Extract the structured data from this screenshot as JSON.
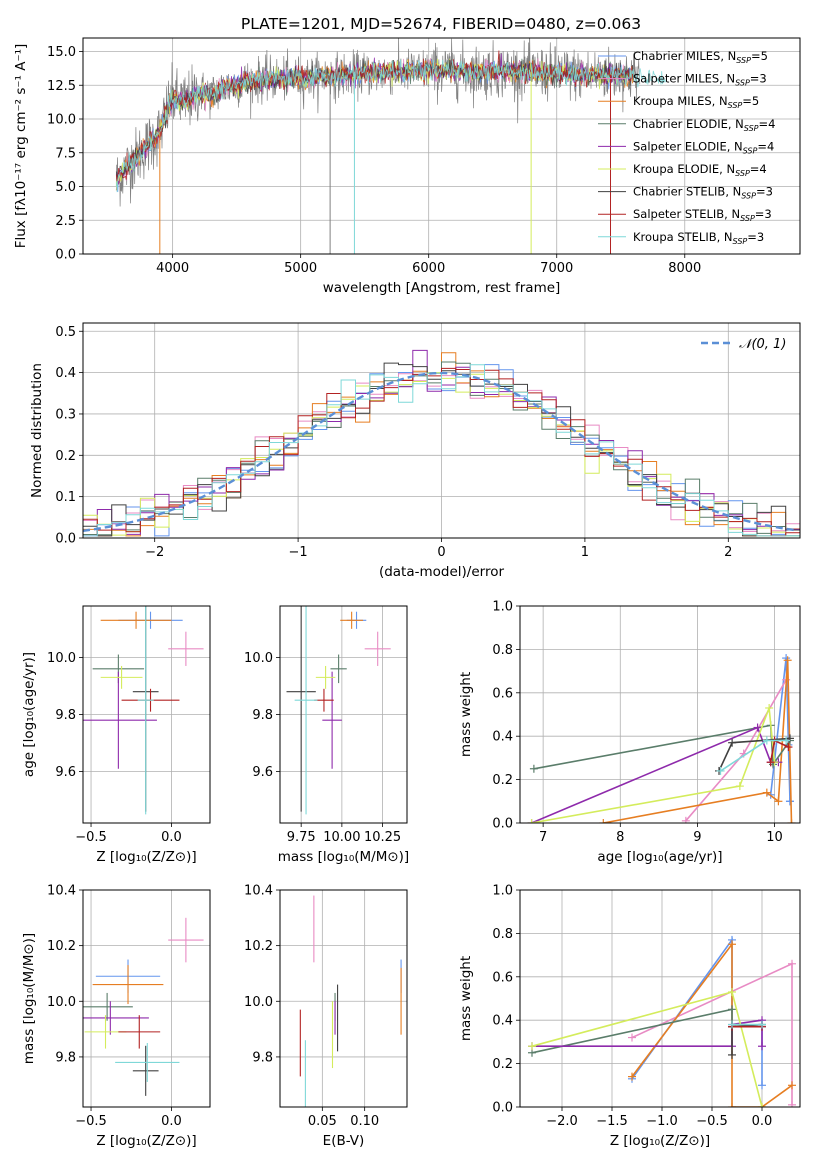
{
  "figure": {
    "title": "PLATE=1201, MJD=52674, FIBERID=0480, z=0.063"
  },
  "chart_data": [
    {
      "id": "spectrum",
      "type": "line",
      "xlabel": "wavelength [Angstrom, rest frame]",
      "ylabel": "Flux [fλ10⁻¹⁷ erg cm⁻² s⁻¹ A⁻¹]",
      "xlim": [
        3300,
        8900
      ],
      "ylim": [
        0,
        16
      ],
      "xticks": [
        4000,
        5000,
        6000,
        7000,
        8000
      ],
      "yticks": [
        0.0,
        2.5,
        5.0,
        7.5,
        10.0,
        12.5,
        15.0
      ],
      "ytick_labels": [
        "0.0",
        "2.5",
        "5.0",
        "7.5",
        "10.0",
        "12.5",
        "15.0"
      ],
      "data_x_range": [
        3560,
        7850
      ],
      "smooth_x": [
        3560,
        3700,
        3800,
        3900,
        3950,
        4000,
        4100,
        4200,
        4300,
        4400,
        4600,
        4800,
        5000,
        5200,
        5400,
        5600,
        5800,
        6000,
        6200,
        6400,
        6600,
        6800,
        7000,
        7200,
        7400,
        7600,
        7850
      ],
      "smooth_y": [
        5.5,
        7.0,
        8.0,
        9.0,
        10.5,
        11.5,
        11.2,
        12.0,
        11.8,
        12.3,
        12.8,
        13.0,
        13.0,
        13.2,
        13.3,
        13.4,
        13.5,
        13.6,
        13.6,
        13.5,
        13.6,
        13.5,
        13.4,
        13.3,
        13.3,
        13.2,
        13.0
      ],
      "legend_loc": "right",
      "legend": [
        {
          "label": "Chabrier MILES, N",
          "sub": "SSP",
          "suffix": "=5",
          "color": "#6495ed"
        },
        {
          "label": "Salpeter MILES, N",
          "sub": "SSP",
          "suffix": "=3",
          "color": "#e88bc4"
        },
        {
          "label": "Kroupa MILES, N",
          "sub": "SSP",
          "suffix": "=5",
          "color": "#e67e22"
        },
        {
          "label": "Chabrier ELODIE, N",
          "sub": "SSP",
          "suffix": "=4",
          "color": "#5a7d6a"
        },
        {
          "label": "Salpeter ELODIE, N",
          "sub": "SSP",
          "suffix": "=4",
          "color": "#8e2aab"
        },
        {
          "label": "Kroupa ELODIE, N",
          "sub": "SSP",
          "suffix": "=4",
          "color": "#d4ec5c"
        },
        {
          "label": "Chabrier STELIB, N",
          "sub": "SSP",
          "suffix": "=3",
          "color": "#404040"
        },
        {
          "label": "Salpeter STELIB, N",
          "sub": "SSP",
          "suffix": "=3",
          "color": "#b22222"
        },
        {
          "label": "Kroupa STELIB, N",
          "sub": "SSP",
          "suffix": "=3",
          "color": "#7fd8d8"
        }
      ],
      "data_color": "#808080",
      "dips": [
        {
          "x": 3900,
          "color": "#e67e22"
        },
        {
          "x": 5230,
          "color": "#808080"
        },
        {
          "x": 5420,
          "color": "#7fd8d8"
        },
        {
          "x": 6800,
          "color": "#d4ec5c"
        },
        {
          "x": 7420,
          "color": "#b22222"
        }
      ]
    },
    {
      "id": "residuals",
      "type": "histogram",
      "xlabel": "(data-model)/error",
      "ylabel": "Normed distribution",
      "xlim": [
        -2.5,
        2.5
      ],
      "ylim": [
        0,
        0.52
      ],
      "xticks": [
        -2,
        -1,
        0,
        1,
        2
      ],
      "xtick_labels": [
        "−2",
        "−1",
        "0",
        "1",
        "2"
      ],
      "yticks": [
        0.0,
        0.1,
        0.2,
        0.3,
        0.4,
        0.5
      ],
      "ytick_labels": [
        "0.0",
        "0.1",
        "0.2",
        "0.3",
        "0.4",
        "0.5"
      ],
      "grid": true,
      "legend_label": "𝒩(0, 1)",
      "legend_color": "#5b8fd6",
      "bin_width": 0.1,
      "colors": [
        "#6495ed",
        "#e88bc4",
        "#e67e22",
        "#5a7d6a",
        "#8e2aab",
        "#d4ec5c",
        "#404040",
        "#b22222",
        "#7fd8d8"
      ]
    },
    {
      "id": "age-vs-Z",
      "type": "scatter",
      "xlabel": "Z [log₁₀(Z/Z⊙)]",
      "ylabel": "age  [log₁₀(age/yr)]",
      "xlim": [
        -0.55,
        0.24
      ],
      "ylim": [
        9.42,
        10.18
      ],
      "xticks": [
        -0.5,
        0.0
      ],
      "xtick_labels": [
        "−0.5",
        "0.0"
      ],
      "yticks": [
        9.6,
        9.8,
        10.0
      ],
      "ytick_labels": [
        "9.6",
        "9.8",
        "10.0"
      ],
      "points": [
        {
          "color": "#6495ed",
          "x": -0.13,
          "xe": 0.2,
          "y": 10.13,
          "ye": 0.03
        },
        {
          "color": "#e88bc4",
          "x": 0.09,
          "xe": 0.11,
          "y": 10.03,
          "ye": 0.06
        },
        {
          "color": "#e67e22",
          "x": -0.22,
          "xe": 0.22,
          "y": 10.13,
          "ye": 0.03
        },
        {
          "color": "#5a7d6a",
          "x": -0.33,
          "xe": 0.16,
          "y": 9.96,
          "ye": 0.05
        },
        {
          "color": "#8e2aab",
          "x": -0.33,
          "xe": 0.24,
          "y": 9.78,
          "ye": 0.17
        },
        {
          "color": "#d4ec5c",
          "x": -0.31,
          "xe": 0.13,
          "y": 9.93,
          "ye": 0.04
        },
        {
          "color": "#404040",
          "x": -0.16,
          "xe": 0.08,
          "y": 9.88,
          "ye": 0.42
        },
        {
          "color": "#b22222",
          "x": -0.13,
          "xe": 0.18,
          "y": 9.85,
          "ye": 0.04
        },
        {
          "color": "#7fd8d8",
          "x": -0.16,
          "xe": 0.05,
          "y": 9.85,
          "ye": 0.4
        }
      ]
    },
    {
      "id": "age-vs-mass",
      "type": "scatter",
      "xlabel": "mass [log₁₀(M/M⊙)]",
      "ylabel": "",
      "xlim": [
        9.62,
        10.4
      ],
      "ylim": [
        9.42,
        10.18
      ],
      "xticks": [
        9.75,
        10.0,
        10.25
      ],
      "xtick_labels": [
        "9.75",
        "10.00",
        "10.25"
      ],
      "yticks": [
        9.6,
        9.8,
        10.0
      ],
      "ytick_labels": [
        "9.6",
        "9.8",
        "10.0"
      ],
      "points": [
        {
          "color": "#6495ed",
          "x": 10.09,
          "xe": 0.06,
          "y": 10.13,
          "ye": 0.03
        },
        {
          "color": "#e88bc4",
          "x": 10.22,
          "xe": 0.08,
          "y": 10.03,
          "ye": 0.06
        },
        {
          "color": "#e67e22",
          "x": 10.06,
          "xe": 0.07,
          "y": 10.13,
          "ye": 0.03
        },
        {
          "color": "#5a7d6a",
          "x": 9.98,
          "xe": 0.05,
          "y": 9.96,
          "ye": 0.05
        },
        {
          "color": "#8e2aab",
          "x": 9.94,
          "xe": 0.06,
          "y": 9.78,
          "ye": 0.17
        },
        {
          "color": "#d4ec5c",
          "x": 9.9,
          "xe": 0.06,
          "y": 9.93,
          "ye": 0.04
        },
        {
          "color": "#404040",
          "x": 9.75,
          "xe": 0.09,
          "y": 9.88,
          "ye": 0.42
        },
        {
          "color": "#b22222",
          "x": 9.89,
          "xe": 0.06,
          "y": 9.85,
          "ye": 0.04
        },
        {
          "color": "#7fd8d8",
          "x": 9.78,
          "xe": 0.07,
          "y": 9.85,
          "ye": 0.4
        }
      ]
    },
    {
      "id": "massweight-vs-age",
      "type": "line",
      "xlabel": "age  [log₁₀(age/yr)]",
      "ylabel": "mass weight",
      "xlim": [
        6.7,
        10.33
      ],
      "ylim": [
        0,
        1
      ],
      "xticks": [
        7,
        8,
        9,
        10
      ],
      "xtick_labels": [
        "7",
        "8",
        "9",
        "10"
      ],
      "yticks": [
        0.0,
        0.2,
        0.4,
        0.6,
        0.8,
        1.0
      ],
      "ytick_labels": [
        "0.0",
        "0.2",
        "0.4",
        "0.6",
        "0.8",
        "1.0"
      ],
      "grid": true,
      "series": [
        {
          "color": "#6495ed",
          "x": [
            9.95,
            10.15,
            10.2,
            10.18,
            10.2
          ],
          "y": [
            0.13,
            0.76,
            0.1,
            0.36,
            0.1
          ]
        },
        {
          "color": "#e88bc4",
          "x": [
            8.85,
            9.6,
            10.15
          ],
          "y": [
            0.01,
            0.32,
            0.66
          ]
        },
        {
          "color": "#e67e22",
          "x": [
            7.78,
            9.9,
            10.05,
            10.17,
            10.22
          ],
          "y": [
            0.0,
            0.14,
            0.1,
            0.75,
            0.0
          ]
        },
        {
          "color": "#5a7d6a",
          "x": [
            6.88,
            9.95,
            9.98,
            10.2
          ],
          "y": [
            0.25,
            0.45,
            0.27,
            0.38
          ]
        },
        {
          "color": "#8e2aab",
          "x": [
            6.85,
            9.78,
            9.95,
            10.05
          ],
          "y": [
            0.0,
            0.44,
            0.28,
            0.28
          ]
        },
        {
          "color": "#d4ec5c",
          "x": [
            6.85,
            9.55,
            9.93,
            10.0
          ],
          "y": [
            0.0,
            0.17,
            0.53,
            0.28
          ]
        },
        {
          "color": "#404040",
          "x": [
            9.28,
            9.45,
            10.2
          ],
          "y": [
            0.24,
            0.37,
            0.39
          ]
        },
        {
          "color": "#b22222",
          "x": [
            9.95,
            10.0,
            10.18
          ],
          "y": [
            0.28,
            0.38,
            0.35
          ]
        },
        {
          "color": "#7fd8d8",
          "x": [
            9.3,
            9.9,
            10.15
          ],
          "y": [
            0.24,
            0.38,
            0.38
          ]
        }
      ]
    },
    {
      "id": "mass-vs-Z",
      "type": "scatter",
      "xlabel": "Z [log₁₀(Z/Z⊙)]",
      "ylabel": "mass [log₁₀(M/M⊙)]",
      "xlim": [
        -0.55,
        0.24
      ],
      "ylim": [
        9.62,
        10.4
      ],
      "xticks": [
        -0.5,
        0.0
      ],
      "xtick_labels": [
        "−0.5",
        "0.0"
      ],
      "yticks": [
        9.8,
        10.0,
        10.2,
        10.4
      ],
      "ytick_labels": [
        "9.8",
        "10.0",
        "10.2",
        "10.4"
      ],
      "points": [
        {
          "color": "#6495ed",
          "x": -0.27,
          "xe": 0.2,
          "y": 10.09,
          "ye": 0.06
        },
        {
          "color": "#e88bc4",
          "x": 0.09,
          "xe": 0.11,
          "y": 10.22,
          "ye": 0.08
        },
        {
          "color": "#e67e22",
          "x": -0.27,
          "xe": 0.22,
          "y": 10.06,
          "ye": 0.07
        },
        {
          "color": "#5a7d6a",
          "x": -0.4,
          "xe": 0.16,
          "y": 9.98,
          "ye": 0.05
        },
        {
          "color": "#8e2aab",
          "x": -0.38,
          "xe": 0.24,
          "y": 9.94,
          "ye": 0.06
        },
        {
          "color": "#d4ec5c",
          "x": -0.41,
          "xe": 0.13,
          "y": 9.89,
          "ye": 0.06
        },
        {
          "color": "#404040",
          "x": -0.16,
          "xe": 0.08,
          "y": 9.75,
          "ye": 0.09
        },
        {
          "color": "#b22222",
          "x": -0.2,
          "xe": 0.13,
          "y": 9.89,
          "ye": 0.06
        },
        {
          "color": "#7fd8d8",
          "x": -0.15,
          "xe": 0.2,
          "y": 9.78,
          "ye": 0.07
        }
      ]
    },
    {
      "id": "mass-vs-ebv",
      "type": "scatter",
      "xlabel": "E(B-V)",
      "ylabel": "",
      "xlim": [
        0.0,
        0.15
      ],
      "ylim": [
        9.62,
        10.4
      ],
      "xticks": [
        0.05,
        0.1
      ],
      "xtick_labels": [
        "0.05",
        "0.10"
      ],
      "yticks": [
        9.8,
        10.0,
        10.2,
        10.4
      ],
      "ytick_labels": [
        "9.8",
        "10.0",
        "10.2",
        "10.4"
      ],
      "points": [
        {
          "color": "#6495ed",
          "x": 0.143,
          "xe": 0,
          "y": 10.09,
          "ye": 0.06
        },
        {
          "color": "#e88bc4",
          "x": 0.04,
          "xe": 0,
          "y": 10.26,
          "ye": 0.12
        },
        {
          "color": "#e67e22",
          "x": 0.143,
          "xe": 0,
          "y": 10.0,
          "ye": 0.12
        },
        {
          "color": "#5a7d6a",
          "x": 0.065,
          "xe": 0,
          "y": 9.98,
          "ye": 0.05
        },
        {
          "color": "#8e2aab",
          "x": 0.065,
          "xe": 0,
          "y": 9.94,
          "ye": 0.06
        },
        {
          "color": "#d4ec5c",
          "x": 0.062,
          "xe": 0,
          "y": 9.88,
          "ye": 0.12
        },
        {
          "color": "#404040",
          "x": 0.068,
          "xe": 0,
          "y": 9.94,
          "ye": 0.12
        },
        {
          "color": "#b22222",
          "x": 0.024,
          "xe": 0,
          "y": 9.85,
          "ye": 0.12
        },
        {
          "color": "#7fd8d8",
          "x": 0.03,
          "xe": 0,
          "y": 9.74,
          "ye": 0.12
        }
      ]
    },
    {
      "id": "massweight-vs-Z",
      "type": "line",
      "xlabel": "Z [log₁₀(Z/Z⊙)]",
      "ylabel": "mass weight",
      "xlim": [
        -2.42,
        0.38
      ],
      "ylim": [
        0,
        1
      ],
      "xticks": [
        -2.0,
        -1.5,
        -1.0,
        -0.5,
        0.0
      ],
      "xtick_labels": [
        "−2.0",
        "−1.5",
        "−1.0",
        "−0.5",
        "0.0"
      ],
      "yticks": [
        0.0,
        0.2,
        0.4,
        0.6,
        0.8,
        1.0
      ],
      "ytick_labels": [
        "0.0",
        "0.2",
        "0.4",
        "0.6",
        "0.8",
        "1.0"
      ],
      "grid": true,
      "series": [
        {
          "color": "#6495ed",
          "x": [
            -1.3,
            -0.3,
            -0.3,
            0.0,
            0.0
          ],
          "y": [
            0.13,
            0.77,
            0.37,
            0.37,
            0.1
          ]
        },
        {
          "color": "#e88bc4",
          "x": [
            -1.3,
            0.3,
            0.3
          ],
          "y": [
            0.32,
            0.66,
            0.01
          ]
        },
        {
          "color": "#e67e22",
          "x": [
            -1.3,
            -0.3,
            -0.3,
            0.0,
            0.3
          ],
          "y": [
            0.14,
            0.75,
            0.0,
            0.0,
            0.1
          ]
        },
        {
          "color": "#5a7d6a",
          "x": [
            -2.3,
            -0.3,
            -0.3,
            0.0
          ],
          "y": [
            0.25,
            0.45,
            0.37,
            0.38
          ]
        },
        {
          "color": "#8e2aab",
          "x": [
            -2.3,
            -0.3,
            -0.3,
            0.0,
            0.0
          ],
          "y": [
            0.28,
            0.28,
            0.38,
            0.4,
            0.28
          ]
        },
        {
          "color": "#d4ec5c",
          "x": [
            -2.3,
            -0.3,
            0.0
          ],
          "y": [
            0.28,
            0.53,
            0.0
          ]
        },
        {
          "color": "#404040",
          "x": [
            -0.3,
            -0.3,
            0.0
          ],
          "y": [
            0.24,
            0.37,
            0.38
          ]
        },
        {
          "color": "#b22222",
          "x": [
            -0.3,
            0.0
          ],
          "y": [
            0.37,
            0.37
          ]
        },
        {
          "color": "#7fd8d8",
          "x": [
            -0.3,
            0.0
          ],
          "y": [
            0.38,
            0.38
          ]
        }
      ]
    }
  ]
}
